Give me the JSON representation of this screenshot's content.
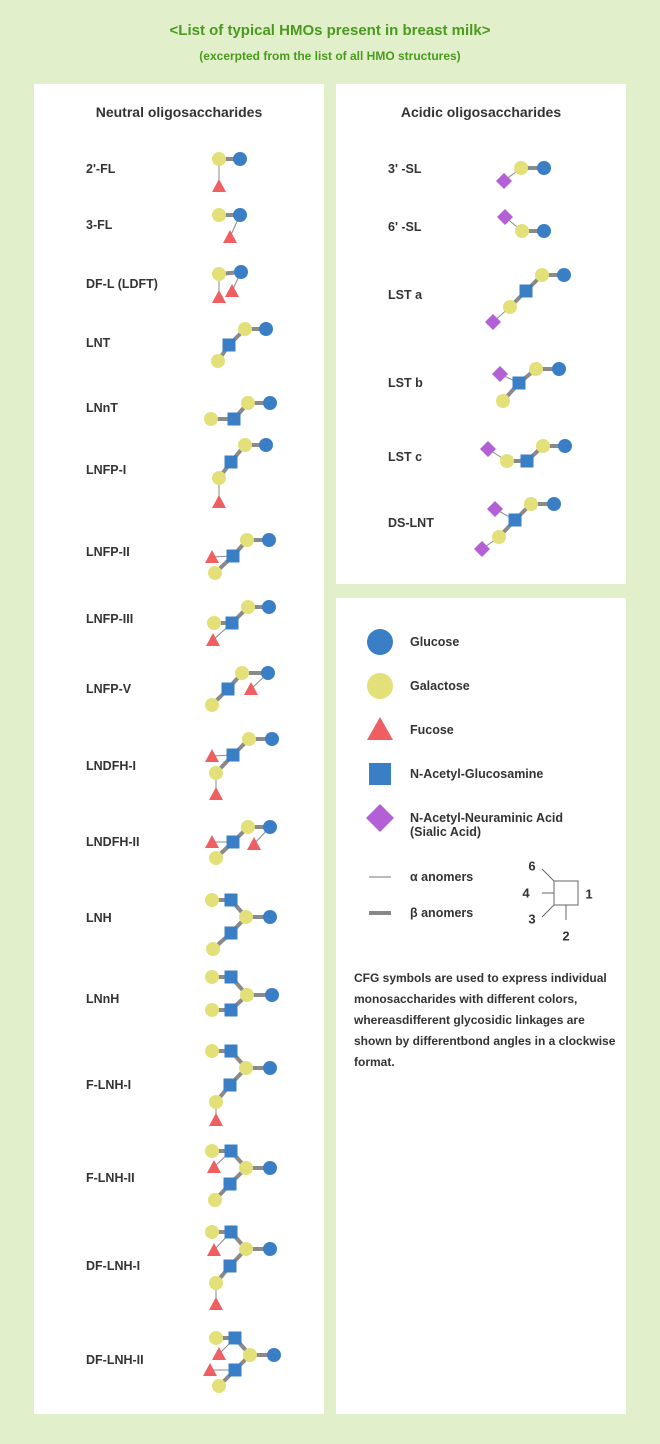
{
  "header": {
    "title": "<List of typical HMOs present in breast milk>",
    "subtitle": "(excerpted from the list of all HMO structures)"
  },
  "neutral": {
    "heading": "Neutral oligosaccharides",
    "items": [
      {
        "label": "2'-FL",
        "glycan": "2'-FL"
      },
      {
        "label": "3-FL",
        "glycan": "3-FL"
      },
      {
        "label": "DF-L (LDFT)",
        "glycan": "DF-L"
      },
      {
        "label": "LNT",
        "glycan": "LNT"
      },
      {
        "label": "LNnT",
        "glycan": "LNnT"
      },
      {
        "label": "LNFP-I",
        "glycan": "LNFP-I"
      },
      {
        "label": "LNFP-II",
        "glycan": "LNFP-II"
      },
      {
        "label": "LNFP-III",
        "glycan": "LNFP-III"
      },
      {
        "label": "LNFP-V",
        "glycan": "LNFP-V"
      },
      {
        "label": "LNDFH-I",
        "glycan": "LNDFH-I"
      },
      {
        "label": "LNDFH-II",
        "glycan": "LNDFH-II"
      },
      {
        "label": "LNH",
        "glycan": "LNH"
      },
      {
        "label": "LNnH",
        "glycan": "LNnH"
      },
      {
        "label": "F-LNH-I",
        "glycan": "F-LNH-I"
      },
      {
        "label": "F-LNH-II",
        "glycan": "F-LNH-II"
      },
      {
        "label": "DF-LNH-I",
        "glycan": "DF-LNH-I"
      },
      {
        "label": "DF-LNH-II",
        "glycan": "DF-LNH-II"
      }
    ]
  },
  "acidic": {
    "heading": "Acidic oligosaccharides",
    "items": [
      {
        "label": "3' -SL",
        "glycan": "3'-SL"
      },
      {
        "label": "6' -SL",
        "glycan": "6'-SL"
      },
      {
        "label": "LST a",
        "glycan": "LST a"
      },
      {
        "label": "LST b",
        "glycan": "LST b"
      },
      {
        "label": "LST c",
        "glycan": "LST c"
      },
      {
        "label": "DS-LNT",
        "glycan": "DS-LNT"
      }
    ]
  },
  "legend": {
    "glucose": "Glucose",
    "galactose": "Galactose",
    "fucose": "Fucose",
    "glcnac": "N-Acetyl-Glucosamine",
    "neuac_line1": "N-Acetyl-Neuraminic Acid",
    "neuac_line2": "(Sialic Acid)",
    "alpha": "α anomers",
    "beta": "β anomers",
    "positions": {
      "p6": "6",
      "p4": "4",
      "p3": "3",
      "p2": "2",
      "p1": "1"
    },
    "note": "CFG symbols are used to express individual monosaccharides with different colors, whereasdifferent glycosidic linkages are shown by differentbond angles in a clockwise format."
  },
  "colors": {
    "glucose": "#3a7fc6",
    "galactose": "#e3e07a",
    "fucose": "#ef5f62",
    "glcnac": "#3a7fc6",
    "neuac": "#b35fd6",
    "title": "#4a9a1e"
  }
}
